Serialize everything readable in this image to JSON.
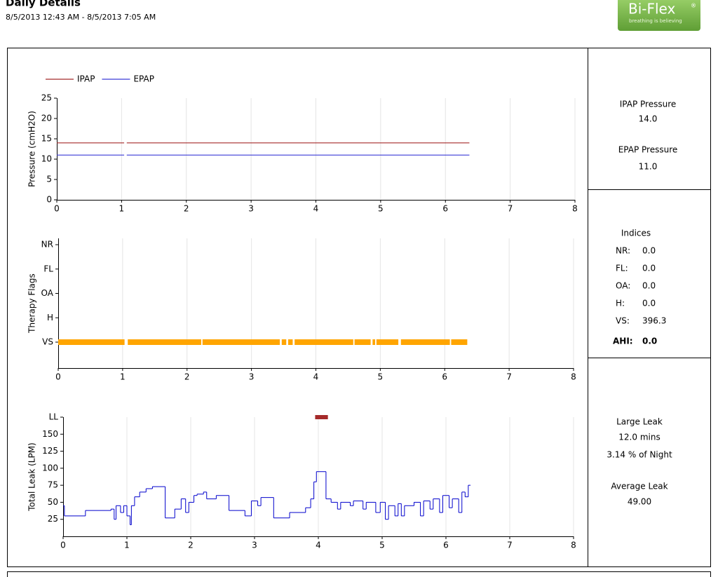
{
  "header": {
    "title": "Daily Details",
    "date_range": "8/5/2013 12:43 AM - 8/5/2013 7:05 AM",
    "logo": {
      "name": "Bi-Flex",
      "mark": "®",
      "tagline": "breathing is believing"
    }
  },
  "chart_data": [
    {
      "type": "line",
      "ylabel": "Pressure (cmH2O)",
      "x": [
        0,
        1.04,
        1.06,
        1.08,
        6.37
      ],
      "series": [
        {
          "name": "IPAP",
          "color": "#a52a2a",
          "values": [
            14,
            14,
            null,
            14,
            14
          ]
        },
        {
          "name": "EPAP",
          "color": "#3a3ad6",
          "values": [
            11,
            11,
            null,
            11,
            11
          ]
        }
      ],
      "xlim": [
        0,
        8
      ],
      "xticks": [
        0,
        1,
        2,
        3,
        4,
        5,
        6,
        7,
        8
      ],
      "ylim": [
        0,
        25
      ],
      "yticks": [
        0,
        5,
        10,
        15,
        20,
        25
      ],
      "grid": "vertical",
      "legend": "top-left"
    },
    {
      "type": "timeline",
      "ylabel": "Therapy Flags",
      "categories": [
        "VS",
        "H",
        "OA",
        "FL",
        "NR"
      ],
      "color": "#ffa500",
      "segments": [
        [
          [
            0,
            1.03
          ],
          [
            1.08,
            2.22
          ],
          [
            2.24,
            3.44
          ],
          [
            3.47,
            3.54
          ],
          [
            3.57,
            3.64
          ],
          [
            3.67,
            4.58
          ],
          [
            4.6,
            4.85
          ],
          [
            4.88,
            4.92
          ],
          [
            4.94,
            5.28
          ],
          [
            5.32,
            6.08
          ],
          [
            6.1,
            6.35
          ]
        ],
        [],
        [],
        [],
        []
      ],
      "xlim": [
        0,
        8
      ],
      "xticks": [
        0,
        1,
        2,
        3,
        4,
        5,
        6,
        7,
        8
      ],
      "grid": "vertical"
    },
    {
      "type": "step",
      "ylabel": "Total Leak (LPM)",
      "color": "#0000cc",
      "x": [
        0,
        0.02,
        0.35,
        0.75,
        0.8,
        0.83,
        0.9,
        0.95,
        1.0,
        1.05,
        1.07,
        1.12,
        1.2,
        1.3,
        1.4,
        1.6,
        1.75,
        1.85,
        1.92,
        1.97,
        2.05,
        2.1,
        2.2,
        2.25,
        2.4,
        2.6,
        2.85,
        2.95,
        3.05,
        3.1,
        3.3,
        3.55,
        3.8,
        3.88,
        3.93,
        3.97,
        4.12,
        4.2,
        4.3,
        4.35,
        4.5,
        4.55,
        4.7,
        4.75,
        4.9,
        4.97,
        5.05,
        5.1,
        5.2,
        5.25,
        5.3,
        5.35,
        5.5,
        5.6,
        5.65,
        5.75,
        5.8,
        5.9,
        5.95,
        6.05,
        6.1,
        6.2,
        6.25,
        6.3,
        6.35,
        6.38
      ],
      "values": [
        45,
        30,
        38,
        40,
        25,
        45,
        35,
        45,
        30,
        17,
        45,
        58,
        65,
        70,
        73,
        27,
        40,
        55,
        35,
        50,
        60,
        62,
        65,
        55,
        60,
        38,
        30,
        52,
        45,
        57,
        27,
        35,
        42,
        55,
        80,
        95,
        55,
        50,
        40,
        50,
        45,
        52,
        40,
        50,
        35,
        50,
        25,
        45,
        30,
        48,
        30,
        45,
        50,
        30,
        52,
        40,
        55,
        35,
        60,
        42,
        55,
        35,
        65,
        58,
        75,
        75
      ],
      "large_leak": {
        "color": "#a52a2a",
        "segments": [
          [
            3.95,
            4.15
          ]
        ]
      },
      "xlim": [
        0,
        8
      ],
      "xticks": [
        0,
        1,
        2,
        3,
        4,
        5,
        6,
        7,
        8
      ],
      "ylim": [
        0,
        175
      ],
      "yticks": [
        25,
        50,
        75,
        100,
        125,
        150,
        {
          "value": 175,
          "label": "LL"
        }
      ],
      "grid": "vertical"
    }
  ],
  "summary": {
    "pressure": [
      {
        "label": "IPAP Pressure",
        "value": "14.0"
      },
      {
        "label": "EPAP Pressure",
        "value": "11.0"
      }
    ],
    "indices": {
      "title": "Indices",
      "rows": [
        {
          "label": "NR:",
          "value": "0.0"
        },
        {
          "label": "FL:",
          "value": "0.0"
        },
        {
          "label": "OA:",
          "value": "0.0"
        },
        {
          "label": "H:",
          "value": "0.0"
        },
        {
          "label": "VS:",
          "value": "396.3"
        },
        {
          "label": "AHI:",
          "value": "0.0"
        }
      ]
    },
    "leak": {
      "title": "Large Leak",
      "duration": "12.0 mins",
      "percent": "3.14 % of Night",
      "average_title": "Average Leak",
      "average": "49.00"
    }
  }
}
